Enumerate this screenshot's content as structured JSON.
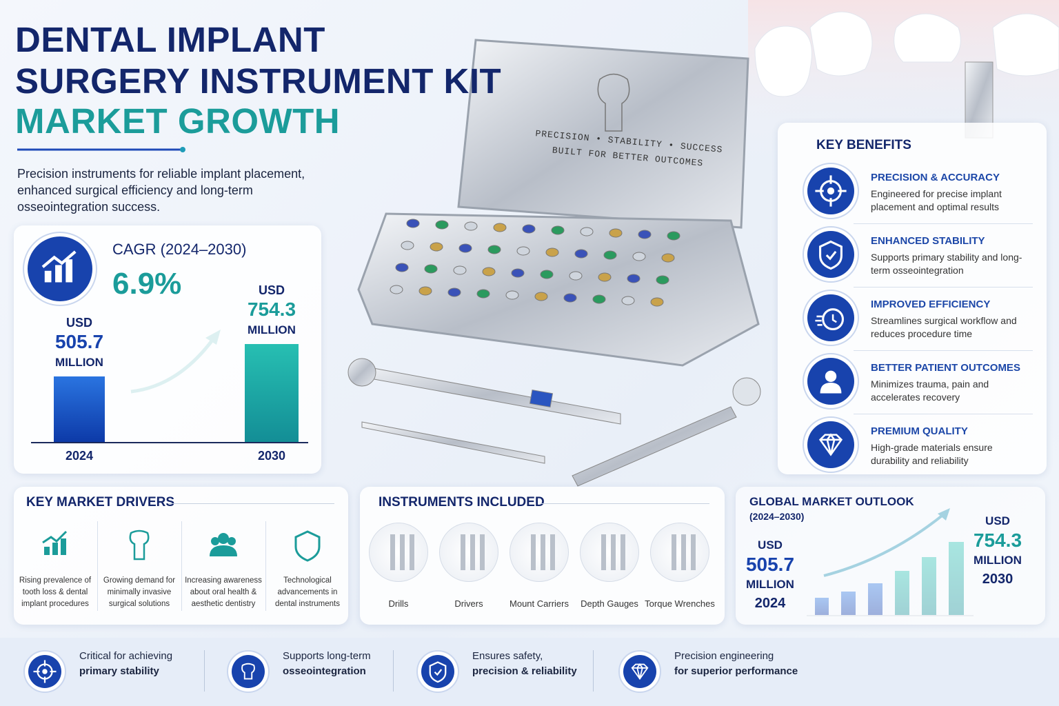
{
  "header": {
    "title_lines": [
      "DENTAL IMPLANT",
      "SURGERY INSTRUMENT KIT",
      "MARKET GROWTH"
    ],
    "subtitle_lines": [
      "Precision instruments for reliable implant placement,",
      "enhanced surgical efficiency and long-term",
      "osseointegration success."
    ]
  },
  "kit": {
    "tagline": [
      "PRECISION • STABILITY • SUCCESS",
      "BUILT FOR BETTER OUTCOMES"
    ]
  },
  "cagr": {
    "label": "CAGR (2024–2030)",
    "value": "6.9%",
    "bars": [
      {
        "unit": "USD",
        "value": 505.7,
        "scale": "MILLION",
        "year": "2024"
      },
      {
        "unit": "USD",
        "value": 754.3,
        "scale": "MILLION",
        "year": "2030"
      }
    ]
  },
  "benefits": {
    "title": "KEY BENEFITS",
    "items": [
      {
        "title": "PRECISION & ACCURACY",
        "text": "Engineered for precise implant placement and optimal results"
      },
      {
        "title": "ENHANCED STABILITY",
        "text": "Supports primary stability and long-term osseointegration"
      },
      {
        "title": "IMPROVED EFFICIENCY",
        "text": "Streamlines surgical workflow and reduces procedure time"
      },
      {
        "title": "BETTER PATIENT OUTCOMES",
        "text": "Minimizes trauma, pain and accelerates recovery"
      },
      {
        "title": "PREMIUM QUALITY",
        "text": "High-grade materials ensure durability and reliability"
      }
    ]
  },
  "drivers": {
    "title": "KEY MARKET DRIVERS",
    "items": [
      "Rising prevalence of tooth loss & dental implant procedures",
      "Growing demand for minimally invasive surgical solutions",
      "Increasing awareness about oral health & aesthetic dentistry",
      "Technological advancements in dental instruments"
    ]
  },
  "instruments": {
    "title": "INSTRUMENTS INCLUDED",
    "items": [
      "Drills",
      "Drivers",
      "Mount Carriers",
      "Depth Gauges",
      "Torque Wrenches"
    ]
  },
  "outlook": {
    "title": "GLOBAL MARKET OUTLOOK",
    "period": "(2024–2030)",
    "start": {
      "unit": "USD",
      "value": 505.7,
      "scale": "MILLION",
      "year": "2024"
    },
    "end": {
      "unit": "USD",
      "value": 754.3,
      "scale": "MILLION",
      "year": "2030"
    }
  },
  "footer": [
    {
      "text": "Critical for achieving",
      "bold": "primary stability"
    },
    {
      "text": "Supports long-term",
      "bold": "osseointegration"
    },
    {
      "text": "Ensures safety,",
      "bold": "precision & reliability"
    },
    {
      "text": "Precision engineering",
      "bold": "for superior performance"
    }
  ]
}
